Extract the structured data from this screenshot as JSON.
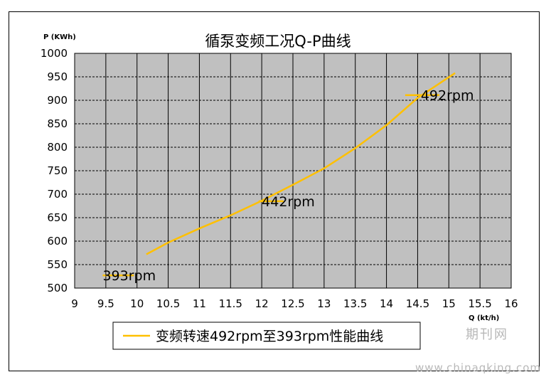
{
  "chart_data": {
    "type": "line",
    "title": "循泵变频工况Q-P曲线",
    "ylabel": "P (KWh)",
    "xlabel": "Q (kt/h)",
    "xlim": [
      9,
      16
    ],
    "ylim": [
      500,
      1000
    ],
    "x_ticks": [
      "9",
      "9.5",
      "10",
      "10.5",
      "11",
      "11.5",
      "12",
      "12.5",
      "13",
      "13.5",
      "14",
      "14.5",
      "15",
      "15.5",
      "16"
    ],
    "y_ticks": [
      "500",
      "550",
      "600",
      "650",
      "700",
      "750",
      "800",
      "850",
      "900",
      "950",
      "1000"
    ],
    "grid": true,
    "plot_background": "#c0c0c0",
    "series": [
      {
        "name": "变频转速492rpm至393rpm性能曲线",
        "color": "#ffc000",
        "points": [
          [
            10.15,
            572
          ],
          [
            10.5,
            597
          ],
          [
            11.0,
            627
          ],
          [
            11.5,
            655
          ],
          [
            12.0,
            686
          ],
          [
            12.5,
            720
          ],
          [
            13.0,
            755
          ],
          [
            13.5,
            798
          ],
          [
            14.0,
            847
          ],
          [
            14.5,
            905
          ],
          [
            15.1,
            958
          ]
        ]
      }
    ],
    "annotations": [
      {
        "text": "492rpm",
        "x": 14.55,
        "y": 911,
        "marker_x": [
          14.3,
          14.85
        ]
      },
      {
        "text": "442rpm",
        "x": 12.0,
        "y": 685,
        "marker_x": [
          11.95,
          12.35
        ]
      },
      {
        "text": "393rpm",
        "x": 9.45,
        "y": 527,
        "marker_x": [
          9.45,
          9.95
        ]
      }
    ],
    "legend": "bottom"
  },
  "watermark": {
    "journal": "期刊网",
    "url": "www.chinaqking.com"
  }
}
